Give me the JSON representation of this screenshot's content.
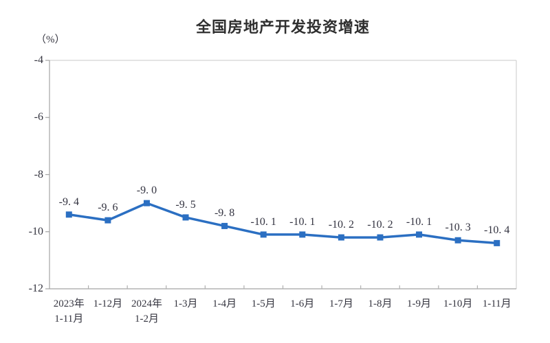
{
  "chart": {
    "title": "全国房地产开发投资增速",
    "unit_label": "（%）"
  },
  "colors": {
    "line": "#2B6FC2",
    "marker": "#2B6FC2",
    "axis": "#a3a3a3",
    "border_light": "#c9c9c9",
    "tick": "#b0b0b0",
    "text": "#34343f"
  },
  "chart_data": {
    "type": "line",
    "title": "全国房地产开发投资增速",
    "ylabel": "（%）",
    "xlabel": "",
    "categories": [
      "2023年\n1-11月",
      "1-12月",
      "2024年\n1-2月",
      "1-3月",
      "1-4月",
      "1-5月",
      "1-6月",
      "1-7月",
      "1-8月",
      "1-9月",
      "1-10月",
      "1-11月"
    ],
    "values": [
      -9.4,
      -9.6,
      -9.0,
      -9.5,
      -9.8,
      -10.1,
      -10.1,
      -10.2,
      -10.2,
      -10.1,
      -10.3,
      -10.4
    ],
    "point_labels": [
      "-9. 4",
      "-9. 6",
      "-9. 0",
      "-9. 5",
      "-9. 8",
      "-10. 1",
      "-10. 1",
      "-10. 2",
      "-10. 2",
      "-10. 1",
      "-10. 3",
      "-10. 4"
    ],
    "ylim": [
      -12,
      -4
    ],
    "y_ticks": [
      -4,
      -6,
      -8,
      -10,
      -12
    ],
    "y_tick_labels": [
      "-4",
      "-6",
      "-8",
      "-10",
      "-12"
    ],
    "grid": false,
    "legend": false,
    "marker": "square",
    "series_name": "全国房地产开发投资增速"
  }
}
